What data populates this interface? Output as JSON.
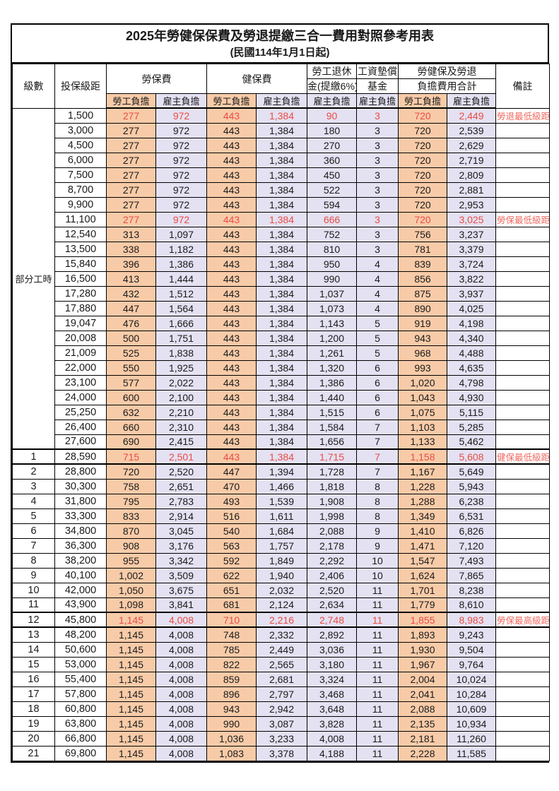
{
  "title": "2025年勞健保保費及勞退提繳三合一費用對照參考用表",
  "subtitle": "(民國114年1月1日起)",
  "header": {
    "level": "級數",
    "bracket": "投保級距",
    "labor_ins": "勞保費",
    "health_ins": "健保費",
    "pension_line1": "勞工退休",
    "pension_line2": "金(提繳6%)",
    "wage_fund_line1": "工資墊償",
    "wage_fund_line2": "基金",
    "total_line1": "勞健保及勞退",
    "total_line2": "負擔費用合計",
    "note": "備註",
    "employee_share": "勞工負擔",
    "employer_share": "雇主負擔"
  },
  "part_time_label": "部分工時",
  "colors": {
    "employee_col_bg": "#F8CBA8",
    "employer_col_bg": "#E4E1F2",
    "highlight_text": "#E84C44",
    "note_text": "#EF6A60",
    "border": "#000000"
  },
  "rows": [
    {
      "level": "",
      "part_time": true,
      "bracket": "1,500",
      "values": [
        "277",
        "972",
        "443",
        "1,384",
        "90",
        "3",
        "720",
        "2,449"
      ],
      "note": "勞退最低級距",
      "highlight": true,
      "thick": false
    },
    {
      "level": "",
      "part_time": true,
      "bracket": "3,000",
      "values": [
        "277",
        "972",
        "443",
        "1,384",
        "180",
        "3",
        "720",
        "2,539"
      ],
      "note": "",
      "highlight": false,
      "thick": false
    },
    {
      "level": "",
      "part_time": true,
      "bracket": "4,500",
      "values": [
        "277",
        "972",
        "443",
        "1,384",
        "270",
        "3",
        "720",
        "2,629"
      ],
      "note": "",
      "highlight": false,
      "thick": false
    },
    {
      "level": "",
      "part_time": true,
      "bracket": "6,000",
      "values": [
        "277",
        "972",
        "443",
        "1,384",
        "360",
        "3",
        "720",
        "2,719"
      ],
      "note": "",
      "highlight": false,
      "thick": false
    },
    {
      "level": "",
      "part_time": true,
      "bracket": "7,500",
      "values": [
        "277",
        "972",
        "443",
        "1,384",
        "450",
        "3",
        "720",
        "2,809"
      ],
      "note": "",
      "highlight": false,
      "thick": false
    },
    {
      "level": "",
      "part_time": true,
      "bracket": "8,700",
      "values": [
        "277",
        "972",
        "443",
        "1,384",
        "522",
        "3",
        "720",
        "2,881"
      ],
      "note": "",
      "highlight": false,
      "thick": false
    },
    {
      "level": "",
      "part_time": true,
      "bracket": "9,900",
      "values": [
        "277",
        "972",
        "443",
        "1,384",
        "594",
        "3",
        "720",
        "2,953"
      ],
      "note": "",
      "highlight": false,
      "thick": false
    },
    {
      "level": "",
      "part_time": true,
      "bracket": "11,100",
      "values": [
        "277",
        "972",
        "443",
        "1,384",
        "666",
        "3",
        "720",
        "3,025"
      ],
      "note": "勞保最低級距",
      "highlight": true,
      "thick": false
    },
    {
      "level": "",
      "part_time": true,
      "bracket": "12,540",
      "values": [
        "313",
        "1,097",
        "443",
        "1,384",
        "752",
        "3",
        "756",
        "3,237"
      ],
      "note": "",
      "highlight": false,
      "thick": false
    },
    {
      "level": "",
      "part_time": true,
      "bracket": "13,500",
      "values": [
        "338",
        "1,182",
        "443",
        "1,384",
        "810",
        "3",
        "781",
        "3,379"
      ],
      "note": "",
      "highlight": false,
      "thick": false
    },
    {
      "level": "",
      "part_time": true,
      "bracket": "15,840",
      "values": [
        "396",
        "1,386",
        "443",
        "1,384",
        "950",
        "4",
        "839",
        "3,724"
      ],
      "note": "",
      "highlight": false,
      "thick": false
    },
    {
      "level": "",
      "part_time": true,
      "bracket": "16,500",
      "values": [
        "413",
        "1,444",
        "443",
        "1,384",
        "990",
        "4",
        "856",
        "3,822"
      ],
      "note": "",
      "highlight": false,
      "thick": false
    },
    {
      "level": "",
      "part_time": true,
      "bracket": "17,280",
      "values": [
        "432",
        "1,512",
        "443",
        "1,384",
        "1,037",
        "4",
        "875",
        "3,937"
      ],
      "note": "",
      "highlight": false,
      "thick": false
    },
    {
      "level": "",
      "part_time": true,
      "bracket": "17,880",
      "values": [
        "447",
        "1,564",
        "443",
        "1,384",
        "1,073",
        "4",
        "890",
        "4,025"
      ],
      "note": "",
      "highlight": false,
      "thick": false
    },
    {
      "level": "",
      "part_time": true,
      "bracket": "19,047",
      "values": [
        "476",
        "1,666",
        "443",
        "1,384",
        "1,143",
        "5",
        "919",
        "4,198"
      ],
      "note": "",
      "highlight": false,
      "thick": false
    },
    {
      "level": "",
      "part_time": true,
      "bracket": "20,008",
      "values": [
        "500",
        "1,751",
        "443",
        "1,384",
        "1,200",
        "5",
        "943",
        "4,340"
      ],
      "note": "",
      "highlight": false,
      "thick": false
    },
    {
      "level": "",
      "part_time": true,
      "bracket": "21,009",
      "values": [
        "525",
        "1,838",
        "443",
        "1,384",
        "1,261",
        "5",
        "968",
        "4,488"
      ],
      "note": "",
      "highlight": false,
      "thick": false
    },
    {
      "level": "",
      "part_time": true,
      "bracket": "22,000",
      "values": [
        "550",
        "1,925",
        "443",
        "1,384",
        "1,320",
        "6",
        "993",
        "4,635"
      ],
      "note": "",
      "highlight": false,
      "thick": false
    },
    {
      "level": "",
      "part_time": true,
      "bracket": "23,100",
      "values": [
        "577",
        "2,022",
        "443",
        "1,384",
        "1,386",
        "6",
        "1,020",
        "4,798"
      ],
      "note": "",
      "highlight": false,
      "thick": false
    },
    {
      "level": "",
      "part_time": true,
      "bracket": "24,000",
      "values": [
        "600",
        "2,100",
        "443",
        "1,384",
        "1,440",
        "6",
        "1,043",
        "4,930"
      ],
      "note": "",
      "highlight": false,
      "thick": false
    },
    {
      "level": "",
      "part_time": true,
      "bracket": "25,250",
      "values": [
        "632",
        "2,210",
        "443",
        "1,384",
        "1,515",
        "6",
        "1,075",
        "5,115"
      ],
      "note": "",
      "highlight": false,
      "thick": false
    },
    {
      "level": "",
      "part_time": true,
      "bracket": "26,400",
      "values": [
        "660",
        "2,310",
        "443",
        "1,384",
        "1,584",
        "7",
        "1,103",
        "5,285"
      ],
      "note": "",
      "highlight": false,
      "thick": false
    },
    {
      "level": "",
      "part_time": true,
      "bracket": "27,600",
      "values": [
        "690",
        "2,415",
        "443",
        "1,384",
        "1,656",
        "7",
        "1,133",
        "5,462"
      ],
      "note": "",
      "highlight": false,
      "thick": false
    },
    {
      "level": "1",
      "part_time": false,
      "bracket": "28,590",
      "values": [
        "715",
        "2,501",
        "443",
        "1,384",
        "1,715",
        "7",
        "1,158",
        "5,608"
      ],
      "note": "健保最低級距",
      "highlight": true,
      "thick": true
    },
    {
      "level": "2",
      "part_time": false,
      "bracket": "28,800",
      "values": [
        "720",
        "2,520",
        "447",
        "1,394",
        "1,728",
        "7",
        "1,167",
        "5,649"
      ],
      "note": "",
      "highlight": false,
      "thick": false
    },
    {
      "level": "3",
      "part_time": false,
      "bracket": "30,300",
      "values": [
        "758",
        "2,651",
        "470",
        "1,466",
        "1,818",
        "8",
        "1,228",
        "5,943"
      ],
      "note": "",
      "highlight": false,
      "thick": false
    },
    {
      "level": "4",
      "part_time": false,
      "bracket": "31,800",
      "values": [
        "795",
        "2,783",
        "493",
        "1,539",
        "1,908",
        "8",
        "1,288",
        "6,238"
      ],
      "note": "",
      "highlight": false,
      "thick": false
    },
    {
      "level": "5",
      "part_time": false,
      "bracket": "33,300",
      "values": [
        "833",
        "2,914",
        "516",
        "1,611",
        "1,998",
        "8",
        "1,349",
        "6,531"
      ],
      "note": "",
      "highlight": false,
      "thick": false
    },
    {
      "level": "6",
      "part_time": false,
      "bracket": "34,800",
      "values": [
        "870",
        "3,045",
        "540",
        "1,684",
        "2,088",
        "9",
        "1,410",
        "6,826"
      ],
      "note": "",
      "highlight": false,
      "thick": false
    },
    {
      "level": "7",
      "part_time": false,
      "bracket": "36,300",
      "values": [
        "908",
        "3,176",
        "563",
        "1,757",
        "2,178",
        "9",
        "1,471",
        "7,120"
      ],
      "note": "",
      "highlight": false,
      "thick": false
    },
    {
      "level": "8",
      "part_time": false,
      "bracket": "38,200",
      "values": [
        "955",
        "3,342",
        "592",
        "1,849",
        "2,292",
        "10",
        "1,547",
        "7,493"
      ],
      "note": "",
      "highlight": false,
      "thick": false
    },
    {
      "level": "9",
      "part_time": false,
      "bracket": "40,100",
      "values": [
        "1,002",
        "3,509",
        "622",
        "1,940",
        "2,406",
        "10",
        "1,624",
        "7,865"
      ],
      "note": "",
      "highlight": false,
      "thick": false
    },
    {
      "level": "10",
      "part_time": false,
      "bracket": "42,000",
      "values": [
        "1,050",
        "3,675",
        "651",
        "2,032",
        "2,520",
        "11",
        "1,701",
        "8,238"
      ],
      "note": "",
      "highlight": false,
      "thick": false
    },
    {
      "level": "11",
      "part_time": false,
      "bracket": "43,900",
      "values": [
        "1,098",
        "3,841",
        "681",
        "2,124",
        "2,634",
        "11",
        "1,779",
        "8,610"
      ],
      "note": "",
      "highlight": false,
      "thick": false
    },
    {
      "level": "12",
      "part_time": false,
      "bracket": "45,800",
      "values": [
        "1,145",
        "4,008",
        "710",
        "2,216",
        "2,748",
        "11",
        "1,855",
        "8,983"
      ],
      "note": "勞保最高級距",
      "highlight": true,
      "thick": true
    },
    {
      "level": "13",
      "part_time": false,
      "bracket": "48,200",
      "values": [
        "1,145",
        "4,008",
        "748",
        "2,332",
        "2,892",
        "11",
        "1,893",
        "9,243"
      ],
      "note": "",
      "highlight": false,
      "thick": false
    },
    {
      "level": "14",
      "part_time": false,
      "bracket": "50,600",
      "values": [
        "1,145",
        "4,008",
        "785",
        "2,449",
        "3,036",
        "11",
        "1,930",
        "9,504"
      ],
      "note": "",
      "highlight": false,
      "thick": false
    },
    {
      "level": "15",
      "part_time": false,
      "bracket": "53,000",
      "values": [
        "1,145",
        "4,008",
        "822",
        "2,565",
        "3,180",
        "11",
        "1,967",
        "9,764"
      ],
      "note": "",
      "highlight": false,
      "thick": false
    },
    {
      "level": "16",
      "part_time": false,
      "bracket": "55,400",
      "values": [
        "1,145",
        "4,008",
        "859",
        "2,681",
        "3,324",
        "11",
        "2,004",
        "10,024"
      ],
      "note": "",
      "highlight": false,
      "thick": false
    },
    {
      "level": "17",
      "part_time": false,
      "bracket": "57,800",
      "values": [
        "1,145",
        "4,008",
        "896",
        "2,797",
        "3,468",
        "11",
        "2,041",
        "10,284"
      ],
      "note": "",
      "highlight": false,
      "thick": false
    },
    {
      "level": "18",
      "part_time": false,
      "bracket": "60,800",
      "values": [
        "1,145",
        "4,008",
        "943",
        "2,942",
        "3,648",
        "11",
        "2,088",
        "10,609"
      ],
      "note": "",
      "highlight": false,
      "thick": false
    },
    {
      "level": "19",
      "part_time": false,
      "bracket": "63,800",
      "values": [
        "1,145",
        "4,008",
        "990",
        "3,087",
        "3,828",
        "11",
        "2,135",
        "10,934"
      ],
      "note": "",
      "highlight": false,
      "thick": false
    },
    {
      "level": "20",
      "part_time": false,
      "bracket": "66,800",
      "values": [
        "1,145",
        "4,008",
        "1,036",
        "3,233",
        "4,008",
        "11",
        "2,181",
        "11,260"
      ],
      "note": "",
      "highlight": false,
      "thick": false
    },
    {
      "level": "21",
      "part_time": false,
      "bracket": "69,800",
      "values": [
        "1,145",
        "4,008",
        "1,083",
        "3,378",
        "4,188",
        "11",
        "2,228",
        "11,585"
      ],
      "note": "",
      "highlight": false,
      "thick": false
    }
  ]
}
